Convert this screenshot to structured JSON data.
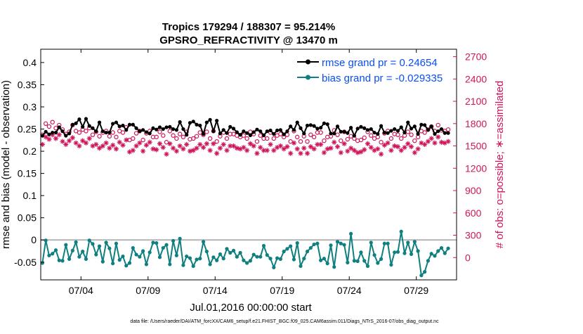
{
  "chart_data": {
    "type": "line",
    "title": "Tropics 179294 / 188307 = 95.214%",
    "subtitle": "GPSRO_REFRACTIVITY @ 13470 m",
    "xlabel": "Jul.01,2016 00:00:00 start",
    "ylabel": "rmse and bias (model - observation)",
    "y2label": "# of obs: o=possible; ∗=assimilated",
    "footnote": "data file: /Users/raeder/DAI/ATM_forcXX/CAM6_setup/f.e21.FHIST_BGC.f09_025.CAM6assim.011/Diags_NTrS_2016-07/obs_diag_output.nc",
    "xlim": [
      1.0,
      32.0
    ],
    "ylim": [
      -0.09,
      0.43
    ],
    "y2lim": [
      -300,
      2800
    ],
    "xticks": [
      4,
      9,
      14,
      19,
      24,
      29
    ],
    "xtick_labels": [
      "07/04",
      "07/09",
      "07/14",
      "07/19",
      "07/24",
      "07/29"
    ],
    "yticks": [
      -0.05,
      0,
      0.05,
      0.1,
      0.15,
      0.2,
      0.25,
      0.3,
      0.35,
      0.4
    ],
    "ytick_labels": [
      "-0.05",
      "0",
      "0.05",
      "0.1",
      "0.15",
      "0.2",
      "0.25",
      "0.3",
      "0.35",
      "0.4"
    ],
    "y2ticks": [
      0,
      300,
      600,
      900,
      1200,
      1500,
      1800,
      2100,
      2400,
      2700
    ],
    "y2tick_labels": [
      "0",
      "300",
      "600",
      "900",
      "1200",
      "1500",
      "1800",
      "2100",
      "2400",
      "2700"
    ],
    "legend": {
      "location": "top-right",
      "entries": [
        "rmse grand pr = 0.24654",
        "bias grand pr = -0.029335"
      ]
    },
    "colors": {
      "rmse": "#000000",
      "bias": "#0f7f7f",
      "counts": "#d0145a",
      "zero_line": "#b4b4b4",
      "legend_text": "#0a4ff0"
    },
    "series": [
      {
        "name": "rmse",
        "axis": "left",
        "values": [
          0.235,
          0.244,
          0.238,
          0.242,
          0.242,
          0.254,
          0.245,
          0.235,
          0.24,
          0.26,
          0.263,
          0.272,
          0.255,
          0.273,
          0.257,
          0.252,
          0.245,
          0.265,
          0.245,
          0.242,
          0.242,
          0.262,
          0.265,
          0.256,
          0.258,
          0.248,
          0.26,
          0.26,
          0.252,
          0.245,
          0.248,
          0.243,
          0.24,
          0.252,
          0.249,
          0.254,
          0.25,
          0.254,
          0.255,
          0.25,
          0.248,
          0.266,
          0.25,
          0.237,
          0.264,
          0.267,
          0.26,
          0.258,
          0.239,
          0.265,
          0.271,
          0.245,
          0.269,
          0.24,
          0.248,
          0.241,
          0.255,
          0.251,
          0.243,
          0.237,
          0.245,
          0.241,
          0.236,
          0.243,
          0.249,
          0.245,
          0.236,
          0.245,
          0.247,
          0.239,
          0.247,
          0.248,
          0.238,
          0.245,
          0.256,
          0.248,
          0.265,
          0.252,
          0.24,
          0.258,
          0.259,
          0.257,
          0.251,
          0.253,
          0.263,
          0.261,
          0.24,
          0.24,
          0.256,
          0.244,
          0.244,
          0.241,
          0.253,
          0.235,
          0.251,
          0.255,
          0.252,
          0.248,
          0.25,
          0.242,
          0.239,
          0.257,
          0.242,
          0.241,
          0.246,
          0.25,
          0.246,
          0.254,
          0.242,
          0.265,
          0.251,
          0.256,
          0.239,
          0.26,
          0.259,
          0.248,
          0.256,
          0.239,
          0.245,
          0.25,
          0.241,
          0.241
        ]
      },
      {
        "name": "bias",
        "axis": "left",
        "values": [
          -0.052,
          -0.001,
          -0.035,
          -0.031,
          -0.023,
          -0.046,
          -0.047,
          -0.011,
          -0.043,
          -0.024,
          -0.005,
          -0.038,
          -0.026,
          -0.043,
          -0.001,
          -0.009,
          -0.033,
          -0.014,
          -0.049,
          -0.006,
          -0.019,
          -0.053,
          -0.008,
          -0.045,
          -0.037,
          -0.058,
          -0.052,
          -0.018,
          -0.033,
          -0.038,
          -0.025,
          -0.055,
          -0.028,
          -0.006,
          -0.007,
          -0.039,
          -0.018,
          -0.011,
          -0.055,
          -0.002,
          -0.035,
          0.003,
          -0.057,
          -0.037,
          -0.041,
          -0.059,
          -0.044,
          -0.042,
          -0.004,
          -0.026,
          -0.055,
          -0.039,
          -0.046,
          -0.032,
          -0.042,
          -0.02,
          -0.029,
          -0.024,
          -0.038,
          -0.029,
          -0.046,
          -0.052,
          -0.047,
          -0.033,
          -0.038,
          -0.038,
          -0.013,
          -0.034,
          -0.042,
          -0.062,
          -0.041,
          -0.043,
          -0.026,
          -0.02,
          -0.014,
          -0.044,
          -0.007,
          -0.059,
          -0.042,
          -0.026,
          -0.018,
          -0.01,
          -0.008,
          -0.046,
          -0.042,
          -0.053,
          -0.012,
          -0.061,
          -0.004,
          -0.008,
          -0.011,
          -0.051,
          0.014,
          -0.047,
          -0.048,
          -0.028,
          -0.047,
          -0.059,
          -0.006,
          -0.034,
          -0.052,
          -0.043,
          -0.008,
          -0.008,
          -0.056,
          -0.028,
          -0.027,
          0.019,
          -0.03,
          -0.006,
          -0.032,
          -0.004,
          -0.025,
          -0.08,
          -0.072,
          -0.047,
          -0.031,
          -0.036,
          -0.025,
          -0.018,
          -0.03,
          -0.019
        ]
      },
      {
        "name": "possible",
        "axis": "right",
        "marker": "o",
        "values": [
          1650,
          1800,
          1760,
          1820,
          1740,
          1780,
          1720,
          1660,
          1690,
          1780,
          1700,
          1680,
          1720,
          1700,
          1740,
          1650,
          1690,
          1630,
          1680,
          1700,
          1630,
          1680,
          1620,
          1700,
          1680,
          1750,
          1580,
          1600,
          1670,
          1700,
          1580,
          1670,
          1700,
          1620,
          1620,
          1690,
          1640,
          1550,
          1700,
          1640,
          1600,
          1660,
          1620,
          1690,
          1590,
          1600,
          1630,
          1680,
          1650,
          1690,
          1600,
          1700,
          1560,
          1630,
          1680,
          1600,
          1660,
          1660,
          1640,
          1620,
          1640,
          1600,
          1690,
          1660,
          1560,
          1640,
          1600,
          1600,
          1680,
          1600,
          1640,
          1660,
          1620,
          1650,
          1560,
          1700,
          1620,
          1560,
          1630,
          1560,
          1650,
          1620,
          1680,
          1680,
          1570,
          1620,
          1630,
          1710,
          1650,
          1570,
          1690,
          1590,
          1630,
          1600,
          1570,
          1580,
          1610,
          1690,
          1640,
          1600,
          1620,
          1550,
          1670,
          1700,
          1600,
          1660,
          1650,
          1600,
          1640,
          1690,
          1650,
          1570,
          1620,
          1700,
          1680,
          1720,
          1760,
          1700,
          1780,
          1710,
          1700,
          1720
        ]
      },
      {
        "name": "assimilated",
        "axis": "right",
        "marker": "*",
        "values": [
          1520,
          1620,
          1590,
          1650,
          1600,
          1650,
          1560,
          1520,
          1570,
          1610,
          1540,
          1500,
          1570,
          1540,
          1600,
          1500,
          1520,
          1470,
          1500,
          1540,
          1470,
          1510,
          1460,
          1550,
          1510,
          1580,
          1420,
          1440,
          1500,
          1540,
          1430,
          1510,
          1550,
          1460,
          1450,
          1530,
          1480,
          1390,
          1530,
          1470,
          1430,
          1500,
          1460,
          1520,
          1430,
          1440,
          1470,
          1520,
          1480,
          1530,
          1440,
          1530,
          1400,
          1470,
          1520,
          1440,
          1500,
          1500,
          1470,
          1460,
          1480,
          1440,
          1530,
          1500,
          1400,
          1480,
          1440,
          1440,
          1520,
          1440,
          1480,
          1500,
          1460,
          1490,
          1400,
          1540,
          1460,
          1400,
          1470,
          1400,
          1490,
          1460,
          1520,
          1520,
          1410,
          1460,
          1470,
          1550,
          1490,
          1410,
          1530,
          1430,
          1470,
          1440,
          1410,
          1420,
          1450,
          1530,
          1480,
          1440,
          1460,
          1390,
          1510,
          1540,
          1440,
          1500,
          1490,
          1440,
          1480,
          1530,
          1490,
          1410,
          1460,
          1540,
          1520,
          1560,
          1600,
          1540,
          1620,
          1550,
          1540,
          1560
        ]
      }
    ]
  }
}
